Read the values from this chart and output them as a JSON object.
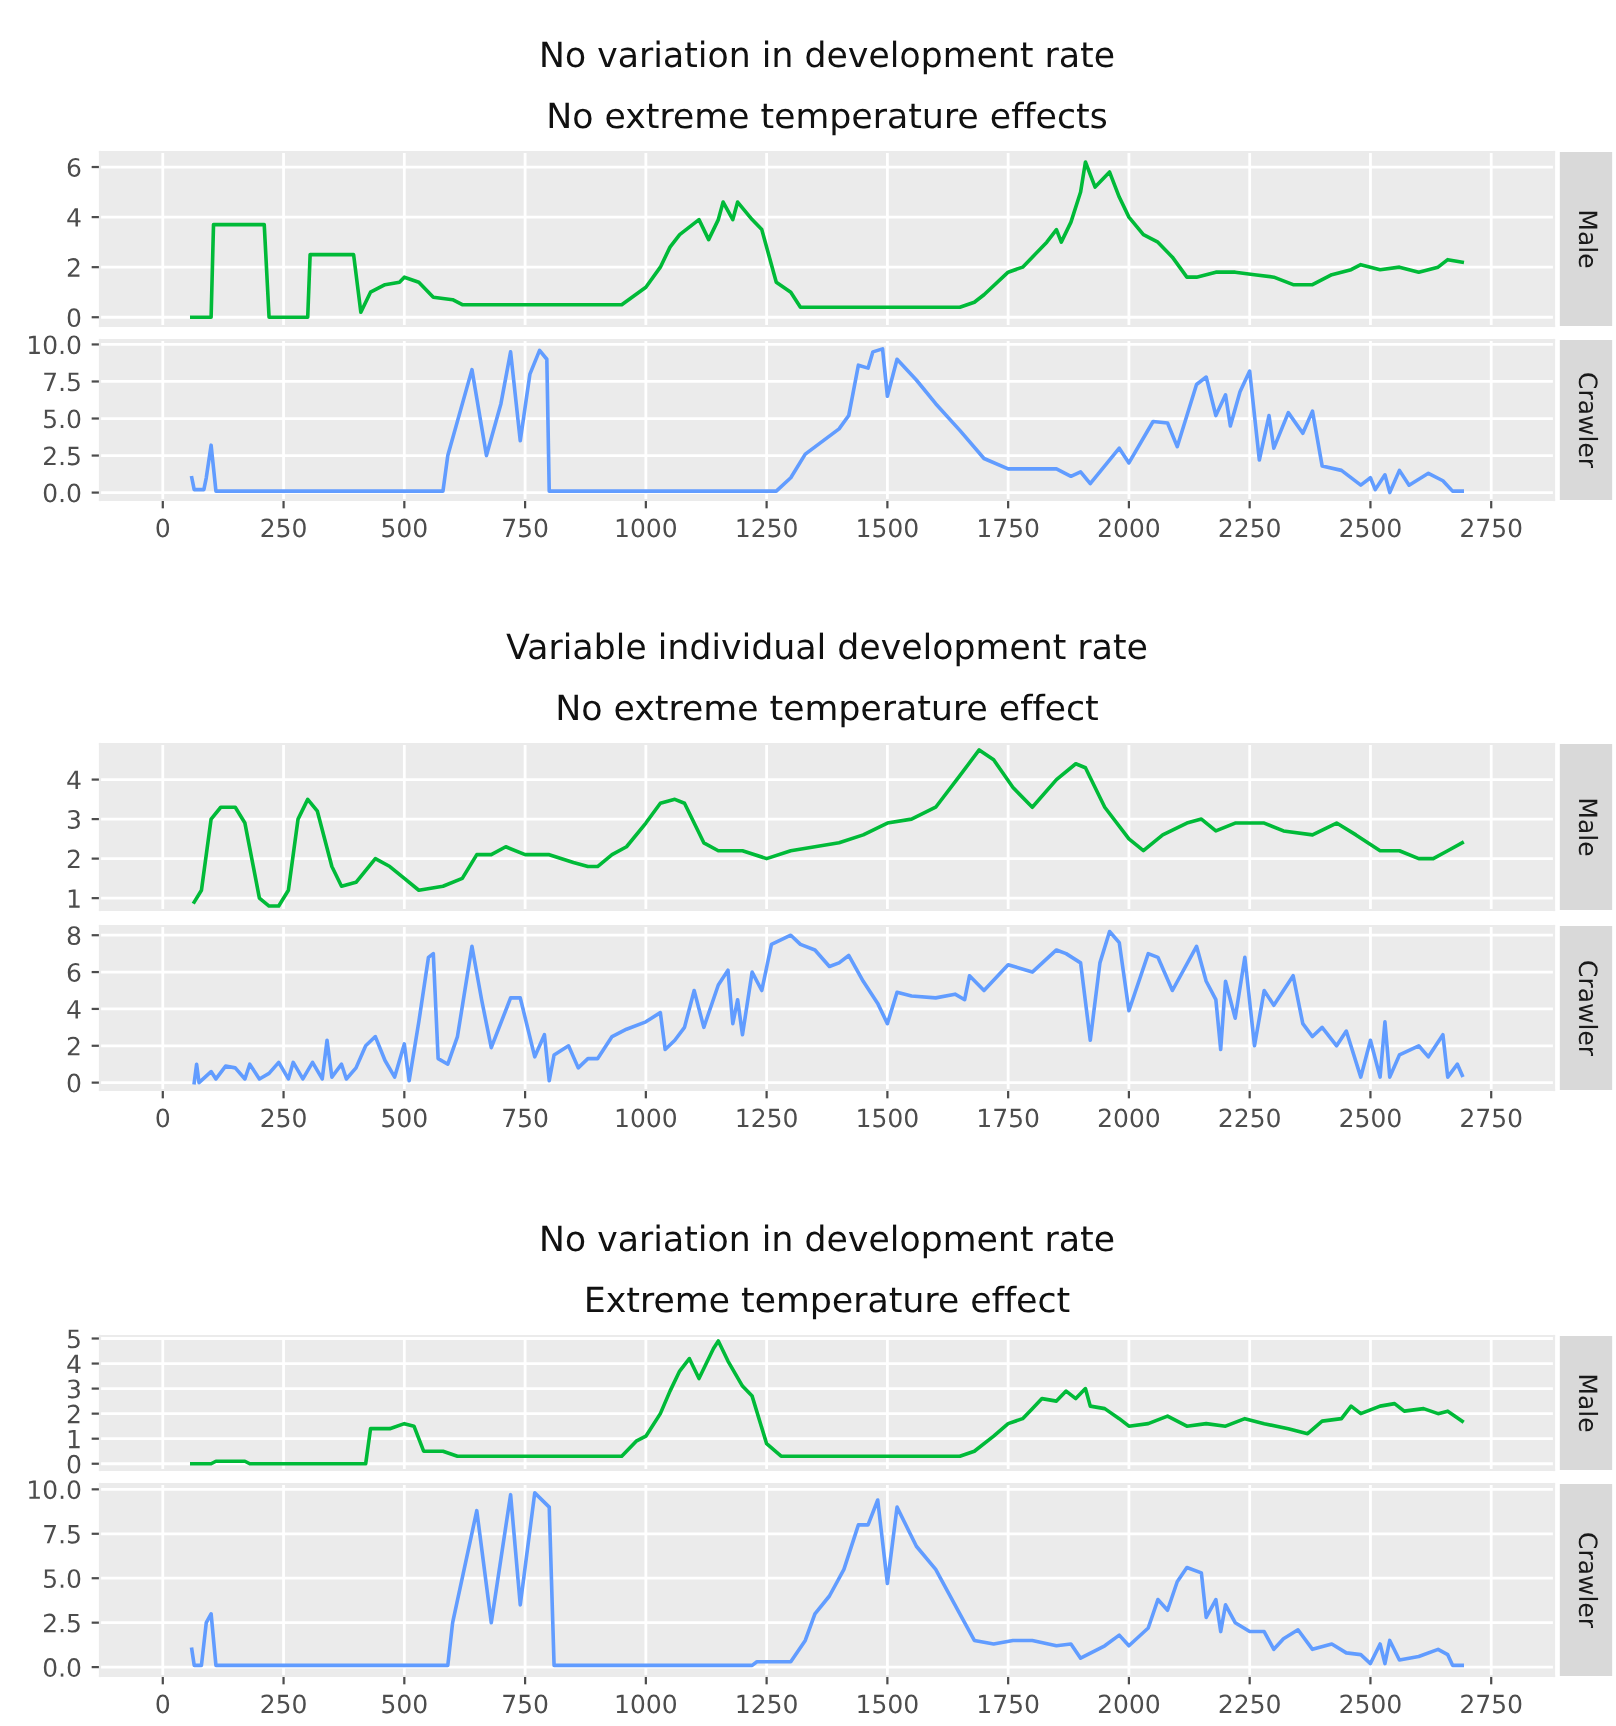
{
  "chart_data": [
    {
      "type": "line",
      "title": "No variation in development rate",
      "subtitle": "No extreme temperature effects",
      "tick_labels": "y",
      "grid": true,
      "xlim": [
        -130,
        2880
      ],
      "xticks": [
        0,
        250,
        500,
        750,
        1000,
        1250,
        1500,
        1750,
        2000,
        2250,
        2500,
        2750
      ],
      "ylim": [
        -0.35,
        6.6
      ],
      "yticks": [
        0,
        2,
        4,
        6
      ],
      "series": [
        {
          "name": "Male",
          "color": "#00ba38",
          "x": [
            60,
            100,
            105,
            210,
            220,
            300,
            305,
            395,
            410,
            430,
            460,
            490,
            500,
            530,
            560,
            600,
            620,
            950,
            1000,
            1030,
            1050,
            1070,
            1090,
            1110,
            1130,
            1150,
            1160,
            1180,
            1190,
            1220,
            1240,
            1270,
            1300,
            1320,
            1650,
            1680,
            1700,
            1750,
            1780,
            1800,
            1830,
            1850,
            1860,
            1880,
            1900,
            1910,
            1930,
            1960,
            1980,
            2000,
            2030,
            2060,
            2090,
            2120,
            2140,
            2180,
            2220,
            2260,
            2300,
            2340,
            2380,
            2420,
            2460,
            2480,
            2520,
            2560,
            2600,
            2640,
            2660,
            2690
          ],
          "values": [
            0,
            0,
            3.7,
            3.7,
            0,
            0,
            2.5,
            2.5,
            0.2,
            1.0,
            1.3,
            1.4,
            1.6,
            1.4,
            0.8,
            0.7,
            0.5,
            0.5,
            1.2,
            2.0,
            2.8,
            3.3,
            3.6,
            3.9,
            3.1,
            3.9,
            4.6,
            3.9,
            4.6,
            3.9,
            3.5,
            1.4,
            1.0,
            0.4,
            0.4,
            0.6,
            0.9,
            1.8,
            2.0,
            2.4,
            3.0,
            3.5,
            3.0,
            3.8,
            5.0,
            6.2,
            5.2,
            5.8,
            4.8,
            4.0,
            3.3,
            3.0,
            2.4,
            1.6,
            1.6,
            1.8,
            1.8,
            1.7,
            1.6,
            1.3,
            1.3,
            1.7,
            1.9,
            2.1,
            1.9,
            2.0,
            1.8,
            2.0,
            2.3,
            2.2
          ]
        }
      ]
    },
    {
      "type": "line",
      "grid": true,
      "xlim": [
        -130,
        2880
      ],
      "xticks": [
        0,
        250,
        500,
        750,
        1000,
        1250,
        1500,
        1750,
        2000,
        2250,
        2500,
        2750
      ],
      "ylim": [
        -0.5,
        10.3
      ],
      "yticks": [
        {
          "value": 0,
          "label": "0.0"
        },
        {
          "value": 2.5,
          "label": "2.5"
        },
        {
          "value": 5,
          "label": "5.0"
        },
        {
          "value": 7.5,
          "label": "7.5"
        },
        {
          "value": 10,
          "label": "10.0"
        }
      ],
      "series": [
        {
          "name": "Crawler",
          "color": "#619cff",
          "x": [
            60,
            65,
            85,
            90,
            100,
            110,
            580,
            590,
            640,
            670,
            700,
            720,
            740,
            760,
            780,
            795,
            800,
            1270,
            1300,
            1330,
            1400,
            1420,
            1440,
            1460,
            1470,
            1490,
            1500,
            1520,
            1560,
            1600,
            1650,
            1700,
            1750,
            1800,
            1850,
            1880,
            1900,
            1920,
            1950,
            1980,
            2000,
            2050,
            2080,
            2100,
            2140,
            2160,
            2180,
            2200,
            2210,
            2230,
            2250,
            2270,
            2290,
            2300,
            2330,
            2360,
            2380,
            2400,
            2440,
            2480,
            2500,
            2510,
            2530,
            2540,
            2560,
            2580,
            2620,
            2650,
            2670,
            2690
          ],
          "values": [
            1.0,
            0.2,
            0.2,
            1.0,
            3.2,
            0.1,
            0.1,
            2.5,
            8.3,
            2.5,
            6.0,
            9.5,
            3.5,
            8.0,
            9.6,
            9.0,
            0.1,
            0.1,
            1.0,
            2.6,
            4.3,
            5.2,
            8.6,
            8.4,
            9.5,
            9.7,
            6.5,
            9.0,
            7.6,
            6.0,
            4.2,
            2.3,
            1.6,
            1.6,
            1.6,
            1.1,
            1.4,
            0.6,
            1.8,
            3.0,
            2.0,
            4.8,
            4.7,
            3.1,
            7.3,
            7.8,
            5.2,
            6.6,
            4.5,
            6.8,
            8.2,
            2.2,
            5.2,
            3.0,
            5.4,
            4.0,
            5.5,
            1.8,
            1.5,
            0.5,
            1.0,
            0.2,
            1.2,
            0.0,
            1.5,
            0.5,
            1.3,
            0.8,
            0.1,
            0.1
          ]
        }
      ]
    },
    {
      "type": "line",
      "title": "Variable individual development rate",
      "subtitle": "No extreme temperature effect",
      "tick_labels": "y",
      "grid": true,
      "xlim": [
        -130,
        2880
      ],
      "xticks": [
        0,
        250,
        500,
        750,
        1000,
        1250,
        1500,
        1750,
        2000,
        2250,
        2500,
        2750
      ],
      "ylim": [
        0.7,
        4.9
      ],
      "yticks": [
        1,
        2,
        3,
        4
      ],
      "series": [
        {
          "name": "Male",
          "color": "#00ba38",
          "x": [
            65,
            80,
            100,
            120,
            150,
            170,
            200,
            220,
            240,
            260,
            280,
            300,
            320,
            350,
            370,
            400,
            440,
            470,
            500,
            530,
            580,
            620,
            650,
            680,
            710,
            750,
            780,
            800,
            850,
            880,
            900,
            930,
            960,
            1000,
            1030,
            1060,
            1080,
            1120,
            1150,
            1200,
            1250,
            1300,
            1350,
            1400,
            1450,
            1500,
            1550,
            1600,
            1650,
            1690,
            1720,
            1760,
            1800,
            1850,
            1890,
            1910,
            1950,
            2000,
            2030,
            2070,
            2120,
            2150,
            2180,
            2220,
            2280,
            2320,
            2380,
            2430,
            2470,
            2520,
            2560,
            2600,
            2630,
            2660,
            2690
          ],
          "values": [
            0.9,
            1.2,
            3.0,
            3.3,
            3.3,
            2.9,
            1.0,
            0.8,
            0.8,
            1.2,
            3.0,
            3.5,
            3.2,
            1.8,
            1.3,
            1.4,
            2.0,
            1.8,
            1.5,
            1.2,
            1.3,
            1.5,
            2.1,
            2.1,
            2.3,
            2.1,
            2.1,
            2.1,
            1.9,
            1.8,
            1.8,
            2.1,
            2.3,
            2.9,
            3.4,
            3.5,
            3.4,
            2.4,
            2.2,
            2.2,
            2.0,
            2.2,
            2.3,
            2.4,
            2.6,
            2.9,
            3.0,
            3.3,
            4.1,
            4.75,
            4.5,
            3.8,
            3.3,
            4.0,
            4.4,
            4.3,
            3.3,
            2.5,
            2.2,
            2.6,
            2.9,
            3.0,
            2.7,
            2.9,
            2.9,
            2.7,
            2.6,
            2.9,
            2.6,
            2.2,
            2.2,
            2.0,
            2.0,
            2.2,
            2.4
          ]
        }
      ]
    },
    {
      "type": "line",
      "grid": true,
      "xlim": [
        -130,
        2880
      ],
      "xticks": [
        0,
        250,
        500,
        750,
        1000,
        1250,
        1500,
        1750,
        2000,
        2250,
        2500,
        2750
      ],
      "ylim": [
        -0.4,
        8.5
      ],
      "yticks": [
        0,
        2,
        4,
        6,
        8
      ],
      "series": [
        {
          "name": "Crawler",
          "color": "#619cff",
          "x": [
            65,
            70,
            75,
            100,
            110,
            130,
            150,
            170,
            180,
            200,
            220,
            240,
            260,
            270,
            290,
            310,
            330,
            340,
            350,
            370,
            380,
            400,
            420,
            440,
            460,
            480,
            500,
            510,
            530,
            550,
            560,
            570,
            590,
            610,
            640,
            660,
            680,
            720,
            740,
            770,
            790,
            800,
            810,
            840,
            860,
            880,
            900,
            930,
            960,
            1000,
            1030,
            1040,
            1060,
            1080,
            1100,
            1120,
            1150,
            1170,
            1180,
            1190,
            1200,
            1220,
            1240,
            1260,
            1300,
            1320,
            1350,
            1380,
            1400,
            1420,
            1450,
            1480,
            1500,
            1520,
            1550,
            1600,
            1640,
            1660,
            1670,
            1700,
            1750,
            1800,
            1850,
            1870,
            1900,
            1920,
            1940,
            1960,
            1980,
            2000,
            2040,
            2060,
            2090,
            2140,
            2160,
            2180,
            2190,
            2200,
            2220,
            2240,
            2260,
            2280,
            2300,
            2340,
            2360,
            2380,
            2400,
            2430,
            2450,
            2480,
            2500,
            2520,
            2530,
            2540,
            2560,
            2600,
            2620,
            2650,
            2660,
            2680,
            2690
          ],
          "values": [
            0,
            1.0,
            0,
            0.6,
            0.2,
            0.9,
            0.8,
            0.2,
            1.0,
            0.2,
            0.5,
            1.1,
            0.2,
            1.1,
            0.2,
            1.1,
            0.2,
            2.3,
            0.3,
            1.0,
            0.2,
            0.8,
            2.0,
            2.5,
            1.2,
            0.3,
            2.1,
            0.1,
            3.3,
            6.8,
            7.0,
            1.3,
            1.0,
            2.5,
            7.4,
            4.5,
            1.9,
            4.6,
            4.6,
            1.4,
            2.6,
            0.1,
            1.5,
            2.0,
            0.8,
            1.3,
            1.3,
            2.5,
            2.9,
            3.3,
            3.8,
            1.8,
            2.3,
            3.0,
            5.0,
            3.0,
            5.3,
            6.1,
            3.2,
            4.5,
            2.6,
            6.0,
            5.0,
            7.5,
            8.0,
            7.5,
            7.2,
            6.3,
            6.5,
            6.9,
            5.5,
            4.3,
            3.2,
            4.9,
            4.7,
            4.6,
            4.8,
            4.5,
            5.8,
            5.0,
            6.4,
            6.0,
            7.2,
            7.0,
            6.5,
            2.3,
            6.5,
            8.2,
            7.6,
            3.9,
            7.0,
            6.8,
            5.0,
            7.4,
            5.5,
            4.5,
            1.8,
            5.5,
            3.5,
            6.8,
            2.0,
            5.0,
            4.2,
            5.8,
            3.2,
            2.5,
            3.0,
            2.0,
            2.8,
            0.3,
            2.3,
            0.3,
            3.3,
            0.3,
            1.5,
            2.0,
            1.4,
            2.6,
            0.3,
            1.0,
            0.4
          ]
        }
      ]
    },
    {
      "type": "line",
      "title": "No variation in development rate",
      "subtitle": "Extreme temperature effect",
      "tick_labels": "y",
      "grid": true,
      "xlim": [
        -130,
        2880
      ],
      "xticks": [
        0,
        250,
        500,
        750,
        1000,
        1250,
        1500,
        1750,
        2000,
        2250,
        2500,
        2750
      ],
      "ylim": [
        -0.25,
        5.1
      ],
      "yticks": [
        0,
        1,
        2,
        3,
        4,
        5
      ],
      "series": [
        {
          "name": "Male",
          "color": "#00ba38",
          "x": [
            60,
            100,
            110,
            170,
            180,
            420,
            430,
            470,
            500,
            520,
            540,
            580,
            610,
            950,
            980,
            1000,
            1030,
            1050,
            1070,
            1090,
            1110,
            1140,
            1150,
            1170,
            1200,
            1220,
            1250,
            1280,
            1650,
            1680,
            1720,
            1750,
            1780,
            1800,
            1820,
            1850,
            1870,
            1890,
            1910,
            1920,
            1950,
            1980,
            2000,
            2040,
            2080,
            2120,
            2160,
            2200,
            2240,
            2280,
            2330,
            2370,
            2400,
            2440,
            2460,
            2480,
            2520,
            2550,
            2570,
            2610,
            2640,
            2660,
            2690
          ],
          "values": [
            0,
            0,
            0.1,
            0.1,
            0,
            0,
            1.4,
            1.4,
            1.6,
            1.5,
            0.5,
            0.5,
            0.3,
            0.3,
            0.9,
            1.1,
            2.0,
            2.9,
            3.7,
            4.2,
            3.4,
            4.6,
            4.9,
            4.1,
            3.1,
            2.7,
            0.8,
            0.3,
            0.3,
            0.5,
            1.1,
            1.6,
            1.8,
            2.2,
            2.6,
            2.5,
            2.9,
            2.6,
            3.0,
            2.3,
            2.2,
            1.8,
            1.5,
            1.6,
            1.9,
            1.5,
            1.6,
            1.5,
            1.8,
            1.6,
            1.4,
            1.2,
            1.7,
            1.8,
            2.3,
            2.0,
            2.3,
            2.4,
            2.1,
            2.2,
            2.0,
            2.1,
            1.7
          ]
        }
      ]
    },
    {
      "type": "line",
      "grid": true,
      "xlim": [
        -130,
        2880
      ],
      "xticks": [
        0,
        250,
        500,
        750,
        1000,
        1250,
        1500,
        1750,
        2000,
        2250,
        2500,
        2750
      ],
      "ylim": [
        -0.5,
        10.3
      ],
      "yticks": [
        {
          "value": 0,
          "label": "0.0"
        },
        {
          "value": 2.5,
          "label": "2.5"
        },
        {
          "value": 5,
          "label": "5.0"
        },
        {
          "value": 7.5,
          "label": "7.5"
        },
        {
          "value": 10,
          "label": "10.0"
        }
      ],
      "series": [
        {
          "name": "Crawler",
          "color": "#619cff",
          "x": [
            60,
            65,
            80,
            90,
            100,
            110,
            590,
            600,
            650,
            680,
            720,
            740,
            770,
            800,
            810,
            1220,
            1230,
            1300,
            1330,
            1350,
            1380,
            1410,
            1440,
            1460,
            1480,
            1500,
            1520,
            1560,
            1600,
            1650,
            1680,
            1720,
            1760,
            1800,
            1850,
            1880,
            1900,
            1950,
            1980,
            2000,
            2040,
            2060,
            2080,
            2100,
            2120,
            2150,
            2160,
            2180,
            2190,
            2200,
            2220,
            2250,
            2280,
            2300,
            2320,
            2350,
            2380,
            2420,
            2450,
            2480,
            2500,
            2520,
            2530,
            2540,
            2560,
            2600,
            2640,
            2660,
            2670,
            2690
          ],
          "values": [
            1.0,
            0.1,
            0.1,
            2.5,
            3.0,
            0.1,
            0.1,
            2.5,
            8.8,
            2.5,
            9.7,
            3.5,
            9.8,
            9.0,
            0.1,
            0.1,
            0.3,
            0.3,
            1.5,
            3.0,
            4.0,
            5.5,
            8.0,
            8.0,
            9.4,
            4.7,
            9.0,
            6.8,
            5.5,
            3.0,
            1.5,
            1.3,
            1.5,
            1.5,
            1.2,
            1.3,
            0.5,
            1.2,
            1.8,
            1.2,
            2.2,
            3.8,
            3.2,
            4.8,
            5.6,
            5.3,
            2.8,
            3.8,
            2.0,
            3.5,
            2.5,
            2.0,
            2.0,
            1.0,
            1.6,
            2.1,
            1.0,
            1.3,
            0.8,
            0.7,
            0.2,
            1.3,
            0.2,
            1.5,
            0.4,
            0.6,
            1.0,
            0.7,
            0.1,
            0.1
          ]
        }
      ]
    }
  ]
}
